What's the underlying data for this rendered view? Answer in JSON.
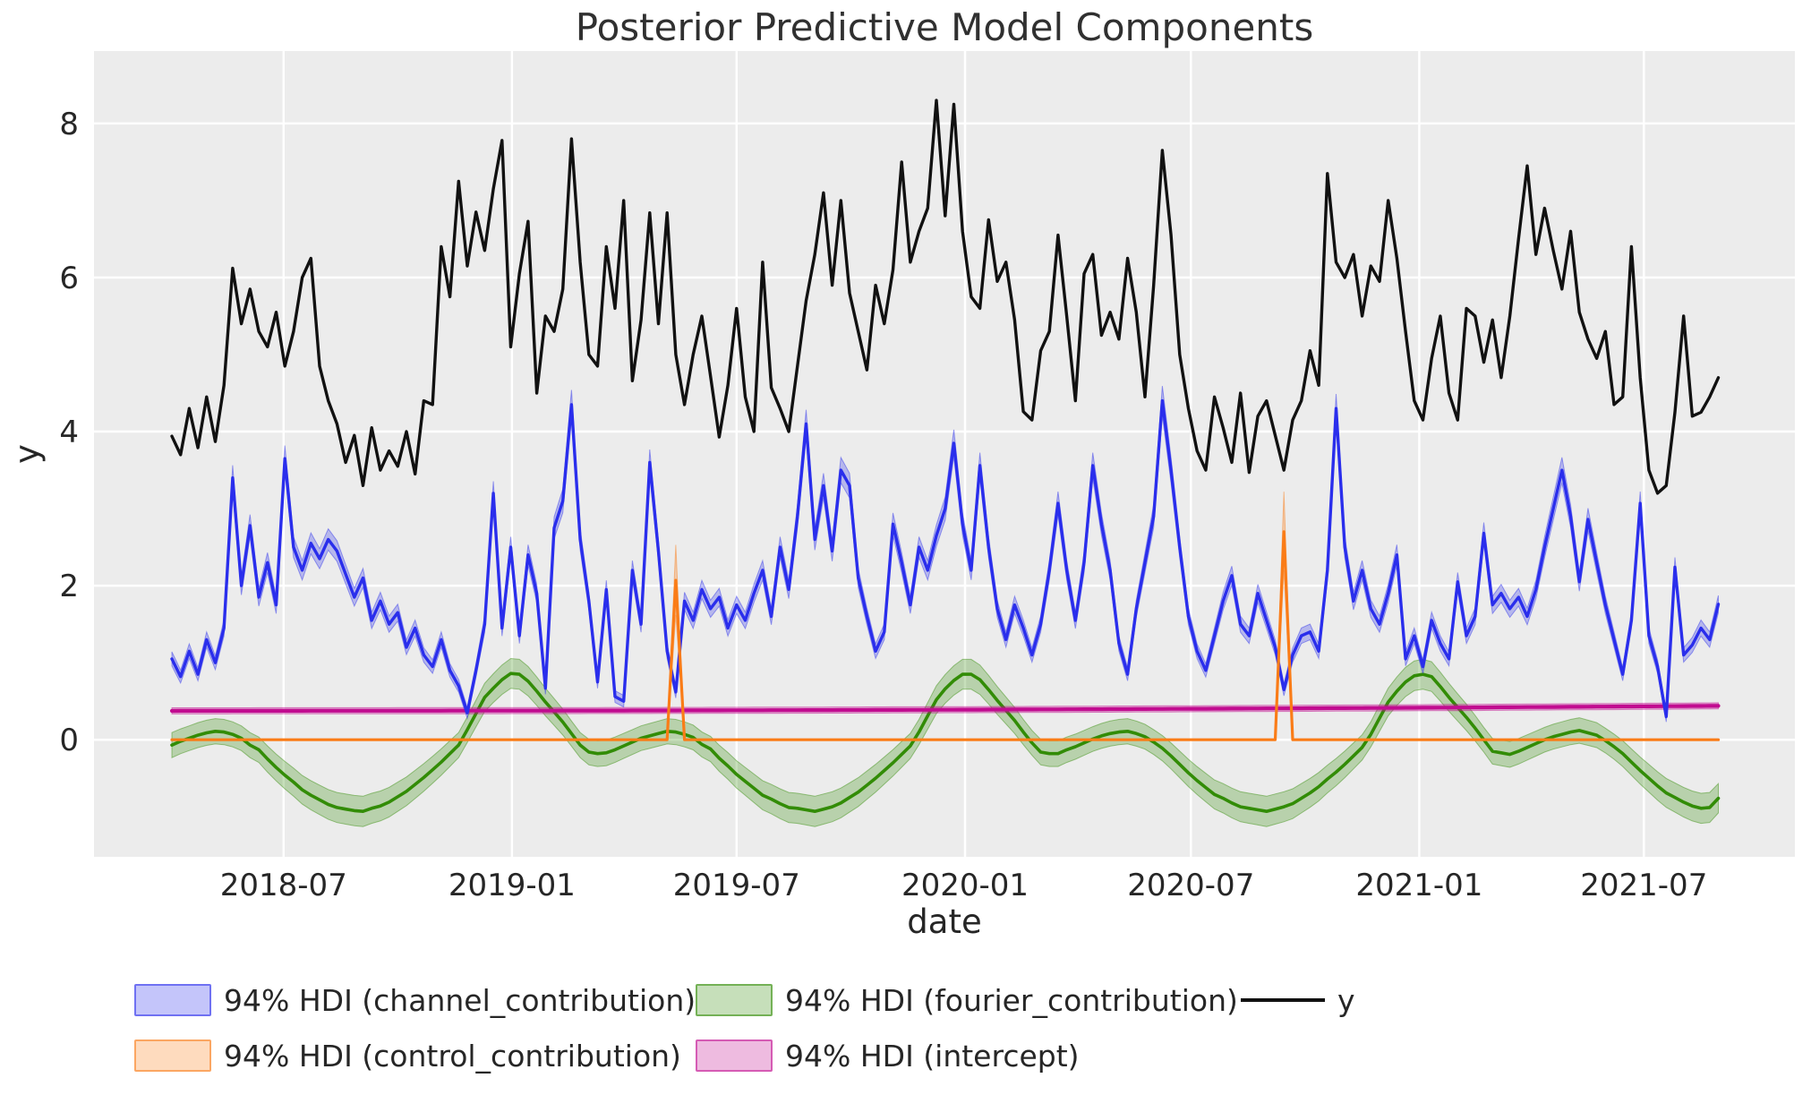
{
  "chart_data": {
    "type": "line",
    "title": "Posterior Predictive Model Components",
    "xlabel": "date",
    "ylabel": "y",
    "ylim": [
      -1.52,
      8.94
    ],
    "grid": true,
    "legend_position": "below",
    "colors": {
      "background": "#ececec",
      "grid": "#ffffff",
      "text": "#262626"
    },
    "x": {
      "n": 179,
      "start_date": "2018-04-02",
      "freq": "weekly"
    },
    "xticks": [
      {
        "label": "2018-07",
        "week": 12.86
      },
      {
        "label": "2019-01",
        "week": 39.14
      },
      {
        "label": "2019-07",
        "week": 65.0
      },
      {
        "label": "2020-01",
        "week": 91.29
      },
      {
        "label": "2020-07",
        "week": 117.29
      },
      {
        "label": "2021-01",
        "week": 143.57
      },
      {
        "label": "2021-07",
        "week": 169.43
      }
    ],
    "yticks": [
      0,
      2,
      4,
      6,
      8
    ],
    "series": [
      {
        "name": "fourier_contribution",
        "color": "#328c06",
        "lw": 3.6,
        "hdi": {
          "base": 0.16,
          "per_unit": 0.04
        },
        "band_alpha": 0.28,
        "values": [
          -0.07,
          -0.02,
          0.02,
          0.06,
          0.09,
          0.11,
          0.1,
          0.07,
          0.02,
          -0.07,
          -0.13,
          -0.25,
          -0.36,
          -0.46,
          -0.55,
          -0.65,
          -0.72,
          -0.78,
          -0.84,
          -0.88,
          -0.9,
          -0.92,
          -0.93,
          -0.89,
          -0.86,
          -0.81,
          -0.74,
          -0.67,
          -0.58,
          -0.49,
          -0.39,
          -0.29,
          -0.18,
          -0.07,
          0.13,
          0.34,
          0.55,
          0.67,
          0.78,
          0.86,
          0.85,
          0.76,
          0.63,
          0.49,
          0.36,
          0.23,
          0.08,
          -0.07,
          -0.16,
          -0.18,
          -0.17,
          -0.13,
          -0.08,
          -0.03,
          0.02,
          0.05,
          0.08,
          0.11,
          0.1,
          0.07,
          0.03,
          -0.06,
          -0.12,
          -0.24,
          -0.34,
          -0.45,
          -0.54,
          -0.63,
          -0.72,
          -0.77,
          -0.83,
          -0.88,
          -0.89,
          -0.91,
          -0.93,
          -0.9,
          -0.87,
          -0.82,
          -0.75,
          -0.68,
          -0.59,
          -0.5,
          -0.4,
          -0.3,
          -0.19,
          -0.08,
          0.1,
          0.31,
          0.52,
          0.66,
          0.77,
          0.85,
          0.85,
          0.78,
          0.65,
          0.51,
          0.38,
          0.25,
          0.1,
          -0.04,
          -0.16,
          -0.18,
          -0.18,
          -0.13,
          -0.09,
          -0.04,
          0.01,
          0.05,
          0.08,
          0.1,
          0.11,
          0.08,
          0.04,
          -0.03,
          -0.11,
          -0.21,
          -0.32,
          -0.43,
          -0.53,
          -0.62,
          -0.71,
          -0.76,
          -0.82,
          -0.87,
          -0.89,
          -0.91,
          -0.93,
          -0.9,
          -0.87,
          -0.83,
          -0.76,
          -0.69,
          -0.61,
          -0.51,
          -0.42,
          -0.32,
          -0.21,
          -0.1,
          0.07,
          0.28,
          0.49,
          0.63,
          0.75,
          0.83,
          0.85,
          0.82,
          0.69,
          0.55,
          0.42,
          0.29,
          0.15,
          0.0,
          -0.15,
          -0.17,
          -0.19,
          -0.15,
          -0.1,
          -0.05,
          0.0,
          0.04,
          0.07,
          0.1,
          0.12,
          0.09,
          0.06,
          -0.01,
          -0.09,
          -0.18,
          -0.29,
          -0.4,
          -0.5,
          -0.6,
          -0.69,
          -0.75,
          -0.81,
          -0.86,
          -0.89,
          -0.88,
          -0.76
        ]
      },
      {
        "name": "intercept",
        "color": "#c10c90",
        "lw": 4.2,
        "hdi": {
          "base": 0.04,
          "per_unit": 0
        },
        "band_alpha": 0.32,
        "control_points": [
          0.375,
          0.376,
          0.377,
          0.378,
          0.38,
          0.383,
          0.387,
          0.392,
          0.398,
          0.405,
          0.412,
          0.42,
          0.43,
          0.44
        ]
      },
      {
        "name": "channel_contribution",
        "color": "#2a2eec",
        "lw": 3.4,
        "hdi": {
          "base": 0.06,
          "per_unit": 0.03
        },
        "band_alpha": 0.28,
        "values": [
          1.05,
          0.82,
          1.15,
          0.85,
          1.3,
          1.0,
          1.45,
          3.4,
          2.0,
          2.78,
          1.85,
          2.3,
          1.75,
          3.65,
          2.5,
          2.2,
          2.55,
          2.35,
          2.6,
          2.45,
          2.15,
          1.85,
          2.1,
          1.55,
          1.8,
          1.5,
          1.65,
          1.2,
          1.45,
          1.1,
          0.95,
          1.3,
          0.9,
          0.7,
          0.35,
          0.9,
          1.5,
          3.2,
          1.45,
          2.5,
          1.35,
          2.4,
          1.9,
          0.67,
          2.75,
          3.1,
          4.35,
          2.6,
          1.8,
          0.75,
          1.95,
          0.56,
          0.5,
          2.2,
          1.5,
          3.6,
          2.45,
          1.15,
          0.62,
          1.8,
          1.55,
          1.95,
          1.7,
          1.85,
          1.45,
          1.75,
          1.55,
          1.9,
          2.2,
          1.6,
          2.5,
          1.95,
          2.9,
          4.1,
          2.6,
          3.3,
          2.45,
          3.5,
          3.3,
          2.1,
          1.6,
          1.15,
          1.4,
          2.8,
          2.3,
          1.75,
          2.5,
          2.2,
          2.65,
          3.0,
          3.85,
          2.8,
          2.2,
          3.56,
          2.5,
          1.7,
          1.3,
          1.75,
          1.45,
          1.1,
          1.5,
          2.2,
          3.07,
          2.2,
          1.55,
          2.3,
          3.56,
          2.8,
          2.2,
          1.25,
          0.85,
          1.7,
          2.3,
          2.9,
          4.4,
          3.5,
          2.5,
          1.6,
          1.15,
          0.9,
          1.35,
          1.8,
          2.13,
          1.5,
          1.35,
          1.9,
          1.55,
          1.2,
          0.65,
          1.1,
          1.35,
          1.4,
          1.15,
          2.2,
          4.3,
          2.5,
          1.8,
          2.2,
          1.7,
          1.5,
          1.9,
          2.4,
          1.05,
          1.35,
          0.95,
          1.55,
          1.25,
          1.05,
          2.05,
          1.35,
          1.6,
          2.68,
          1.75,
          1.9,
          1.7,
          1.85,
          1.6,
          1.95,
          2.5,
          3.0,
          3.5,
          2.9,
          2.05,
          2.86,
          2.3,
          1.75,
          1.3,
          0.85,
          1.55,
          3.07,
          1.35,
          0.95,
          0.3,
          2.24,
          1.1,
          1.23,
          1.45,
          1.3,
          1.76
        ]
      },
      {
        "name": "control_contribution",
        "color": "#fa7c17",
        "lw": 3.2,
        "base_value": 0,
        "band_alpha": 0.3,
        "spikes": [
          {
            "week": 58,
            "date": "2019-05-13",
            "value": 2.07,
            "lo": 1.62,
            "hi": 2.53
          },
          {
            "week": 128,
            "date": "2020-09-14",
            "value": 2.7,
            "lo": 2.2,
            "hi": 3.22
          }
        ]
      },
      {
        "name": "y",
        "color": "#111111",
        "lw": 3.4,
        "values": [
          3.94,
          3.7,
          4.3,
          3.79,
          4.45,
          3.87,
          4.6,
          6.12,
          5.4,
          5.85,
          5.3,
          5.1,
          5.55,
          4.85,
          5.3,
          6.0,
          6.25,
          4.85,
          4.4,
          4.1,
          3.6,
          3.95,
          3.3,
          4.05,
          3.5,
          3.75,
          3.55,
          4.0,
          3.45,
          4.4,
          4.35,
          6.4,
          5.75,
          7.25,
          6.15,
          6.85,
          6.35,
          7.15,
          7.78,
          5.1,
          6.05,
          6.73,
          4.5,
          5.5,
          5.3,
          5.85,
          7.8,
          6.2,
          5.0,
          4.85,
          6.4,
          5.6,
          7.0,
          4.66,
          5.45,
          6.84,
          5.4,
          6.84,
          5.0,
          4.35,
          5.0,
          5.5,
          4.72,
          3.93,
          4.6,
          5.6,
          4.45,
          4.0,
          6.2,
          4.57,
          4.3,
          4.0,
          4.85,
          5.7,
          6.3,
          7.1,
          5.9,
          7.0,
          5.8,
          5.3,
          4.8,
          5.9,
          5.4,
          6.1,
          7.5,
          6.2,
          6.6,
          6.9,
          8.3,
          6.8,
          8.25,
          6.6,
          5.75,
          5.6,
          6.75,
          5.95,
          6.2,
          5.45,
          4.26,
          4.15,
          5.05,
          5.3,
          6.55,
          5.5,
          4.4,
          6.05,
          6.3,
          5.25,
          5.55,
          5.2,
          6.25,
          5.55,
          4.45,
          5.9,
          7.65,
          6.55,
          5.0,
          4.3,
          3.75,
          3.5,
          4.45,
          4.05,
          3.6,
          4.5,
          3.47,
          4.2,
          4.4,
          3.95,
          3.5,
          4.15,
          4.4,
          5.05,
          4.6,
          7.35,
          6.2,
          6.0,
          6.3,
          5.5,
          6.15,
          5.95,
          7.0,
          6.25,
          5.3,
          4.4,
          4.15,
          4.95,
          5.5,
          4.5,
          4.15,
          5.6,
          5.5,
          4.9,
          5.45,
          4.7,
          5.5,
          6.5,
          7.45,
          6.3,
          6.9,
          6.35,
          5.85,
          6.6,
          5.55,
          5.2,
          4.95,
          5.3,
          4.35,
          4.45,
          6.4,
          4.7,
          3.5,
          3.2,
          3.3,
          4.25,
          5.5,
          4.2,
          4.25,
          4.45,
          4.7
        ]
      }
    ],
    "legend": [
      {
        "label": "94% HDI (channel_contribution)",
        "color": "#2a2eec",
        "type": "patch"
      },
      {
        "label": "94% HDI (control_contribution)",
        "color": "#fa7c17",
        "type": "patch"
      },
      {
        "label": "94% HDI (fourier_contribution)",
        "color": "#328c06",
        "type": "patch"
      },
      {
        "label": "94% HDI (intercept)",
        "color": "#c10c90",
        "type": "patch"
      },
      {
        "label": "y",
        "color": "#111111",
        "type": "line"
      }
    ]
  }
}
